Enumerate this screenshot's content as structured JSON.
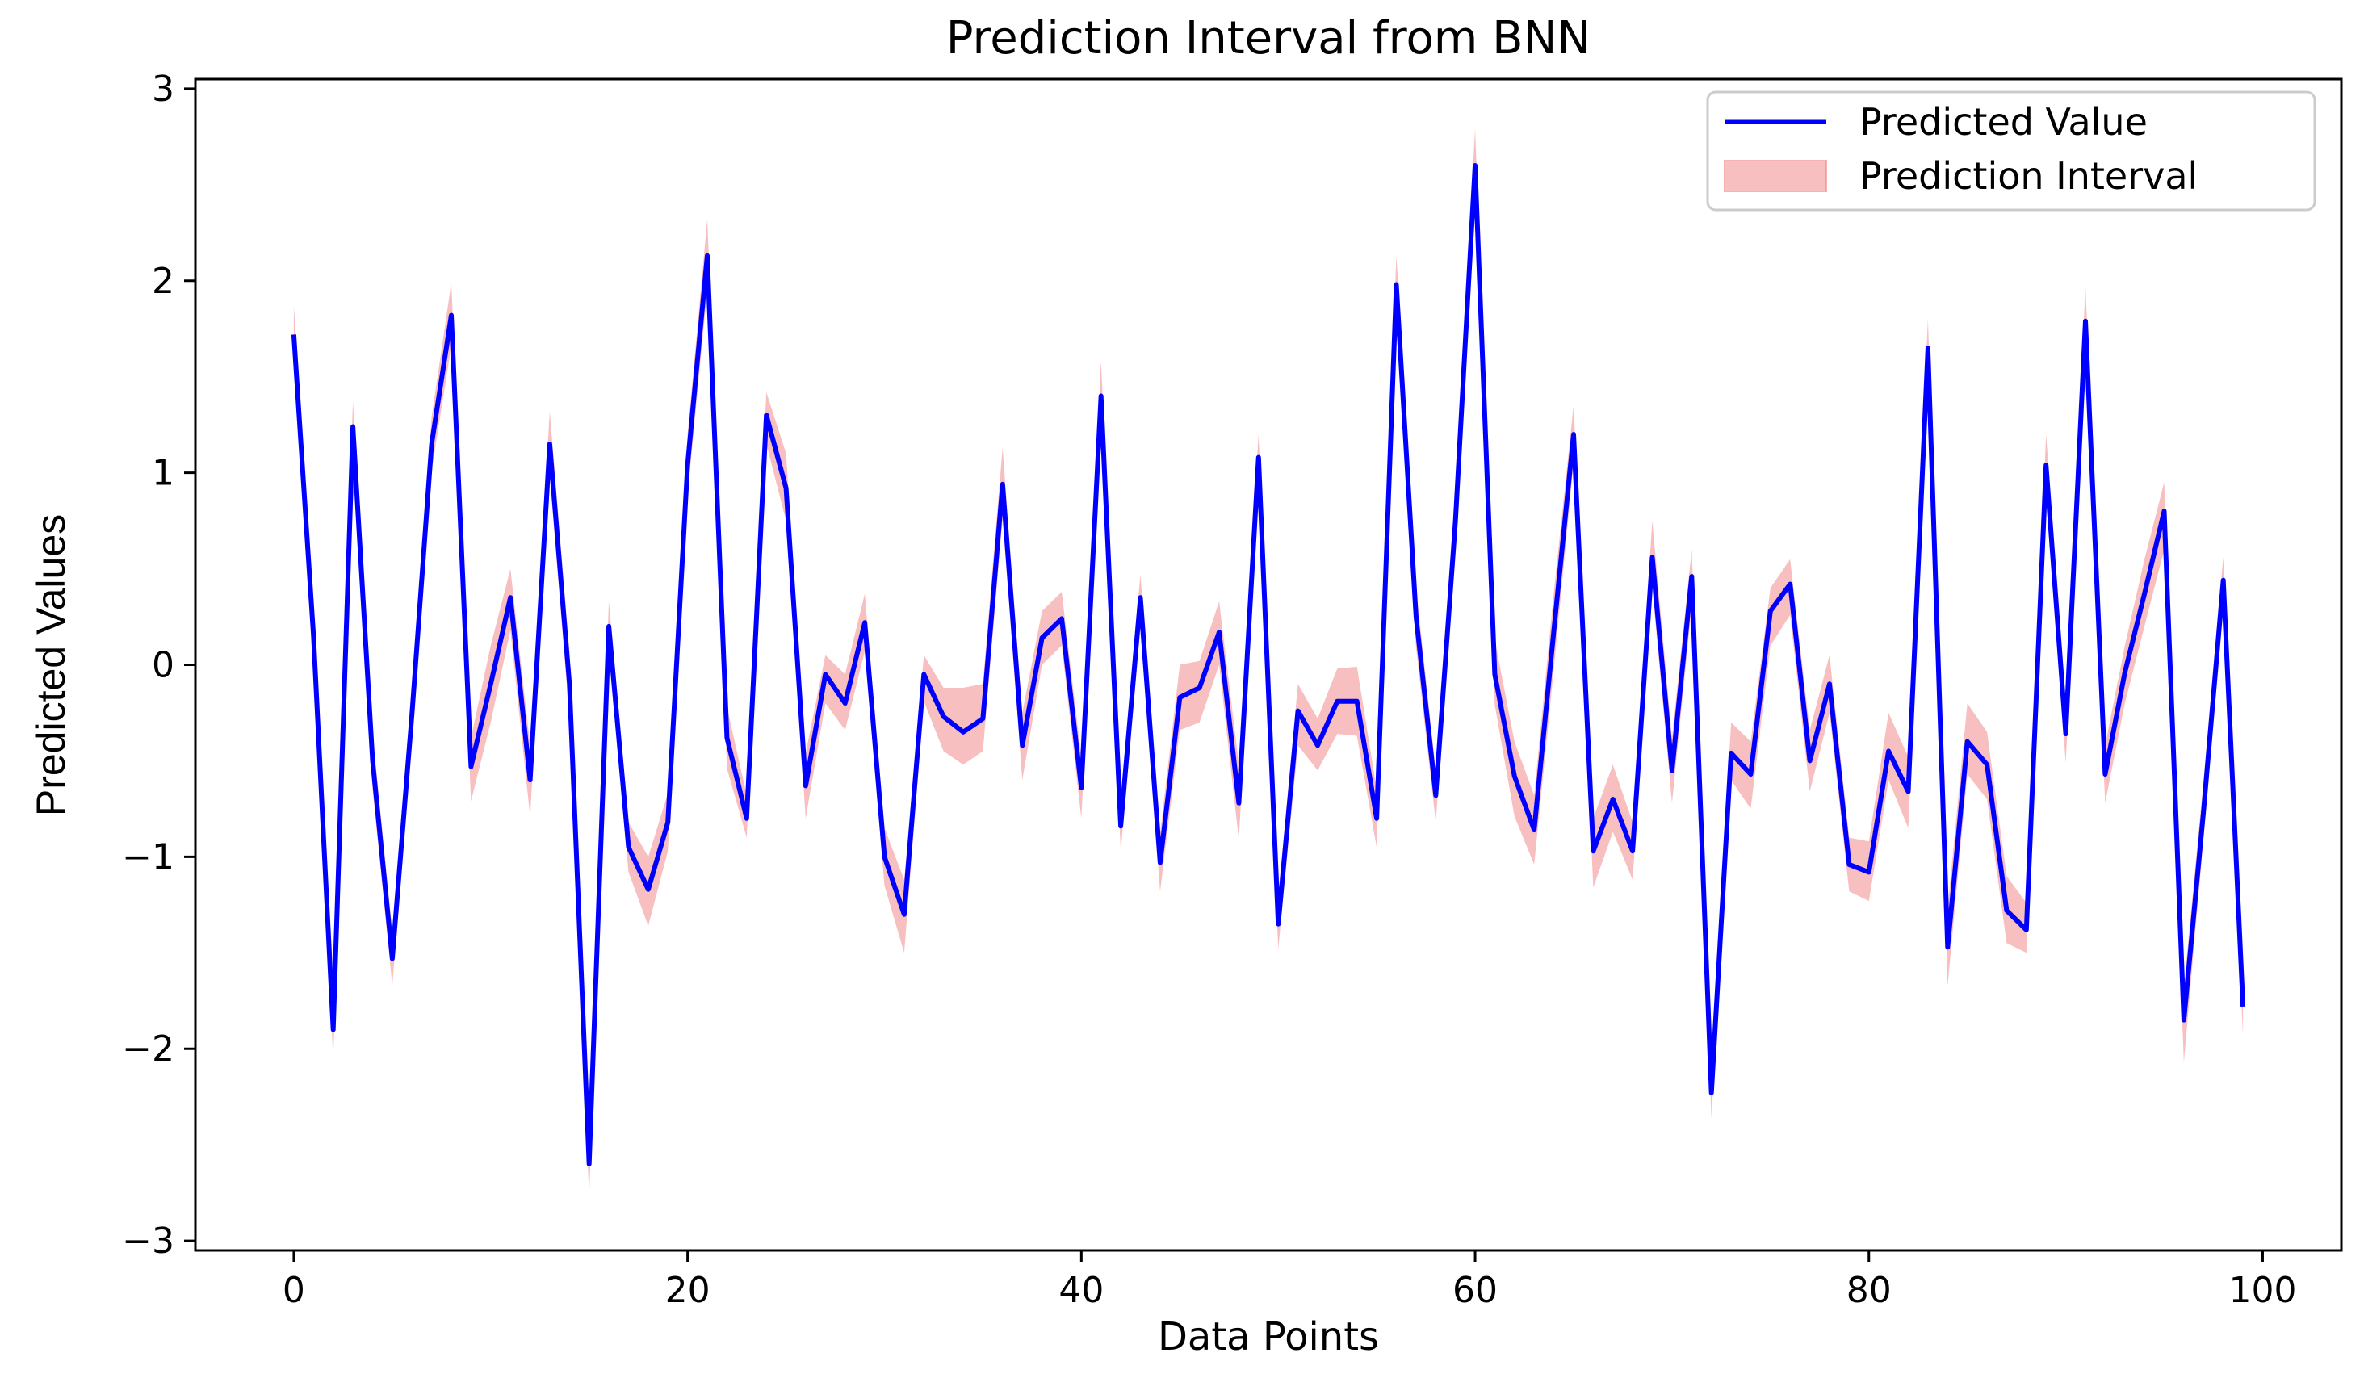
{
  "chart_data": {
    "type": "line",
    "title": "Prediction Interval from BNN",
    "xlabel": "Data Points",
    "ylabel": "Predicted Values",
    "xlim": [
      -5,
      104
    ],
    "ylim": [
      -3.05,
      3.05
    ],
    "xticks": [
      0,
      20,
      40,
      60,
      80,
      100
    ],
    "yticks": [
      -3,
      -2,
      -1,
      0,
      1,
      2,
      3
    ],
    "ytick_labels": [
      "−3",
      "−2",
      "−1",
      "0",
      "1",
      "2",
      "3"
    ],
    "grid": false,
    "legend_position": "top-right",
    "colors": {
      "line": "#0000ff",
      "band": "#f08080",
      "band_opacity": 0.5
    },
    "x": [
      0,
      1,
      2,
      3,
      4,
      5,
      6,
      7,
      8,
      9,
      10,
      11,
      12,
      13,
      14,
      15,
      16,
      17,
      18,
      19,
      20,
      21,
      22,
      23,
      24,
      25,
      26,
      27,
      28,
      29,
      30,
      31,
      32,
      33,
      34,
      35,
      36,
      37,
      38,
      39,
      40,
      41,
      42,
      43,
      44,
      45,
      46,
      47,
      48,
      49,
      50,
      51,
      52,
      53,
      54,
      55,
      56,
      57,
      58,
      59,
      60,
      61,
      62,
      63,
      64,
      65,
      66,
      67,
      68,
      69,
      70,
      71,
      72,
      73,
      74,
      75,
      76,
      77,
      78,
      79,
      80,
      81,
      82,
      83,
      84,
      85,
      86,
      87,
      88,
      89,
      90,
      91,
      92,
      93,
      94,
      95,
      96,
      97,
      98,
      99
    ],
    "series": [
      {
        "name": "Predicted Value",
        "kind": "line",
        "values": [
          1.72,
          0.15,
          -1.9,
          1.24,
          -0.5,
          -1.53,
          -0.26,
          1.15,
          1.82,
          -0.53,
          -0.1,
          0.35,
          -0.6,
          1.15,
          -0.1,
          -2.6,
          0.2,
          -0.95,
          -1.17,
          -0.82,
          1.04,
          2.13,
          -0.38,
          -0.8,
          1.3,
          0.92,
          -0.63,
          -0.05,
          -0.2,
          0.22,
          -1.0,
          -1.3,
          -0.05,
          -0.27,
          -0.35,
          -0.28,
          0.94,
          -0.42,
          0.14,
          0.24,
          -0.64,
          1.4,
          -0.84,
          0.35,
          -1.03,
          -0.17,
          -0.12,
          0.17,
          -0.72,
          1.08,
          -1.35,
          -0.24,
          -0.42,
          -0.19,
          -0.19,
          -0.8,
          1.98,
          0.25,
          -0.68,
          0.75,
          2.6,
          -0.05,
          -0.58,
          -0.86,
          0.18,
          1.2,
          -0.97,
          -0.7,
          -0.97,
          0.56,
          -0.55,
          0.46,
          -2.23,
          -0.46,
          -0.57,
          0.28,
          0.42,
          -0.5,
          -0.1,
          -1.04,
          -1.08,
          -0.45,
          -0.66,
          1.65,
          -1.47,
          -0.4,
          -0.52,
          -1.28,
          -1.38,
          1.04,
          -0.36,
          1.79,
          -0.57,
          -0.04,
          0.37,
          0.8,
          -1.85,
          -0.76,
          0.44,
          -1.78
        ]
      },
      {
        "name": "Prediction Interval",
        "kind": "band",
        "lower": [
          1.57,
          0.0,
          -2.05,
          1.1,
          -0.65,
          -1.67,
          -0.4,
          1.01,
          1.66,
          -0.71,
          -0.3,
          0.18,
          -0.79,
          0.98,
          -0.27,
          -2.77,
          0.06,
          -1.08,
          -1.36,
          -0.97,
          0.88,
          1.95,
          -0.54,
          -0.9,
          1.15,
          0.75,
          -0.8,
          -0.2,
          -0.34,
          0.07,
          -1.15,
          -1.5,
          -0.19,
          -0.45,
          -0.52,
          -0.45,
          0.76,
          -0.6,
          0.0,
          0.1,
          -0.8,
          1.22,
          -0.97,
          0.19,
          -1.18,
          -0.34,
          -0.3,
          0.0,
          -0.91,
          0.91,
          -1.48,
          -0.42,
          -0.55,
          -0.36,
          -0.37,
          -0.95,
          1.82,
          0.09,
          -0.82,
          0.6,
          2.42,
          -0.21,
          -0.79,
          -1.04,
          -0.02,
          1.05,
          -1.16,
          -0.87,
          -1.12,
          0.4,
          -0.72,
          0.3,
          -2.36,
          -0.6,
          -0.75,
          0.1,
          0.26,
          -0.66,
          -0.25,
          -1.18,
          -1.23,
          -0.6,
          -0.85,
          1.5,
          -1.67,
          -0.57,
          -0.7,
          -1.45,
          -1.5,
          0.88,
          -0.51,
          1.6,
          -0.72,
          -0.2,
          0.2,
          0.6,
          -2.07,
          -0.9,
          0.3,
          -1.93
        ],
        "upper": [
          1.87,
          0.3,
          -1.75,
          1.37,
          -0.35,
          -1.39,
          -0.12,
          1.29,
          1.99,
          -0.38,
          0.1,
          0.5,
          -0.42,
          1.32,
          0.07,
          -2.43,
          0.33,
          -0.82,
          -1.0,
          -0.67,
          1.2,
          2.32,
          -0.22,
          -0.68,
          1.42,
          1.1,
          -0.46,
          0.05,
          -0.05,
          0.37,
          -0.85,
          -1.12,
          0.05,
          -0.12,
          -0.12,
          -0.1,
          1.13,
          -0.25,
          0.28,
          0.38,
          -0.48,
          1.58,
          -0.7,
          0.47,
          -0.88,
          0.0,
          0.02,
          0.33,
          -0.52,
          1.2,
          -1.2,
          -0.1,
          -0.28,
          -0.02,
          -0.01,
          -0.65,
          2.13,
          0.4,
          -0.55,
          0.9,
          2.79,
          0.13,
          -0.4,
          -0.68,
          0.38,
          1.35,
          -0.8,
          -0.52,
          -0.82,
          0.75,
          -0.38,
          0.6,
          -2.1,
          -0.3,
          -0.4,
          0.4,
          0.55,
          -0.34,
          0.05,
          -0.9,
          -0.92,
          -0.25,
          -0.48,
          1.8,
          -1.27,
          -0.2,
          -0.35,
          -1.1,
          -1.24,
          1.2,
          -0.2,
          1.97,
          -0.42,
          0.1,
          0.55,
          0.95,
          -1.68,
          -0.6,
          0.56,
          -1.63
        ]
      }
    ]
  }
}
